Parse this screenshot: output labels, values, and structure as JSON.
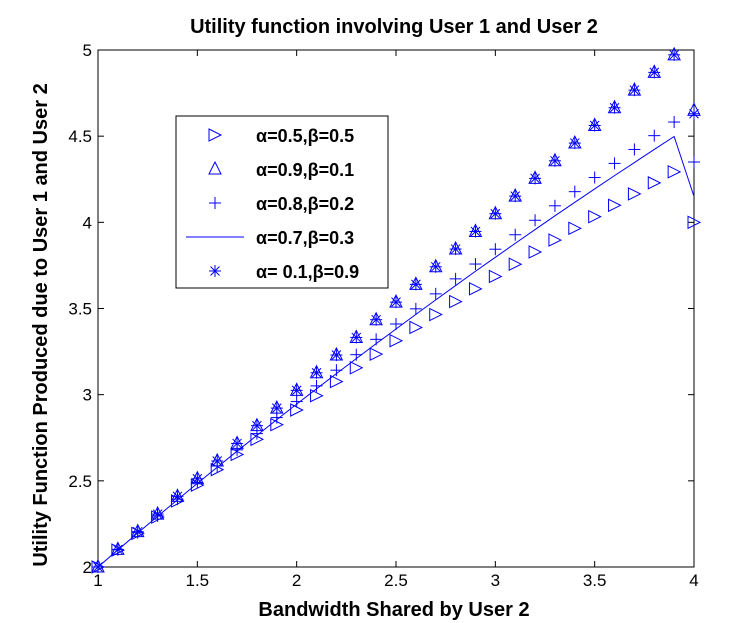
{
  "chart_data": {
    "type": "line",
    "title": "Utility function involving User 1 and User 2",
    "xlabel": "Bandwidth Shared by User 2",
    "ylabel": "Utility Function Produced due to User 1 and User 2",
    "xlim": [
      1,
      4
    ],
    "ylim": [
      2,
      5
    ],
    "xticks": [
      "1",
      "1.5",
      "2",
      "2.5",
      "3",
      "3.5",
      "4"
    ],
    "yticks": [
      "2",
      "2.5",
      "3",
      "3.5",
      "4",
      "4.5",
      "5"
    ],
    "grid": false,
    "legend_position": "upper-left",
    "x": [
      1.0,
      1.1,
      1.2,
      1.3,
      1.4,
      1.5,
      1.6,
      1.7,
      1.8,
      1.9,
      2.0,
      2.1,
      2.2,
      2.3,
      2.4,
      2.5,
      2.6,
      2.7,
      2.8,
      2.9,
      3.0,
      3.1,
      3.2,
      3.3,
      3.4,
      3.5,
      3.6,
      3.7,
      3.8,
      3.9,
      4.0
    ],
    "series": [
      {
        "name": "α=0.5,β=0.5",
        "marker": "triangle-right",
        "values": [
          2.0,
          2.098,
          2.195,
          2.29,
          2.383,
          2.475,
          2.565,
          2.653,
          2.741,
          2.826,
          2.911,
          2.994,
          3.076,
          3.156,
          3.235,
          3.313,
          3.39,
          3.465,
          3.54,
          3.614,
          3.686,
          3.757,
          3.828,
          3.897,
          3.965,
          4.033,
          4.099,
          4.165,
          4.229,
          4.293,
          4.0
        ]
      },
      {
        "name": "α=0.9,β=0.1",
        "marker": "triangle-up",
        "values": [
          2.0,
          2.102,
          2.205,
          2.307,
          2.41,
          2.512,
          2.615,
          2.717,
          2.82,
          2.922,
          3.025,
          3.127,
          3.23,
          3.332,
          3.435,
          3.537,
          3.64,
          3.742,
          3.845,
          3.947,
          4.05,
          4.152,
          4.255,
          4.357,
          4.46,
          4.562,
          4.665,
          4.767,
          4.87,
          4.972,
          4.65
        ]
      },
      {
        "name": "α=0.8,β=0.2",
        "marker": "plus",
        "values": [
          2.0,
          2.1,
          2.199,
          2.297,
          2.394,
          2.49,
          2.586,
          2.68,
          2.774,
          2.867,
          2.96,
          3.051,
          3.142,
          3.232,
          3.321,
          3.41,
          3.498,
          3.585,
          3.672,
          3.758,
          3.844,
          3.928,
          4.012,
          4.096,
          4.178,
          4.26,
          4.342,
          4.423,
          4.503,
          4.582,
          4.35
        ]
      },
      {
        "name": "α=0.7,β=0.3",
        "marker": "line",
        "values": [
          2.0,
          2.099,
          2.197,
          2.294,
          2.39,
          2.485,
          2.579,
          2.672,
          2.764,
          2.855,
          2.945,
          3.034,
          3.122,
          3.209,
          3.296,
          3.381,
          3.466,
          3.55,
          3.633,
          3.716,
          3.797,
          3.878,
          3.958,
          4.038,
          4.116,
          4.194,
          4.271,
          4.347,
          4.423,
          4.498,
          4.15
        ]
      },
      {
        "name": "α= 0.1,β=0.9",
        "marker": "asterisk",
        "values": [
          2.0,
          2.102,
          2.205,
          2.307,
          2.41,
          2.512,
          2.615,
          2.717,
          2.82,
          2.922,
          3.025,
          3.127,
          3.23,
          3.332,
          3.435,
          3.537,
          3.64,
          3.742,
          3.845,
          3.947,
          4.05,
          4.152,
          4.255,
          4.357,
          4.46,
          4.562,
          4.665,
          4.767,
          4.87,
          4.972,
          4.63
        ]
      }
    ],
    "colors": {
      "series": "#0000ff",
      "axes": "#000000"
    }
  }
}
